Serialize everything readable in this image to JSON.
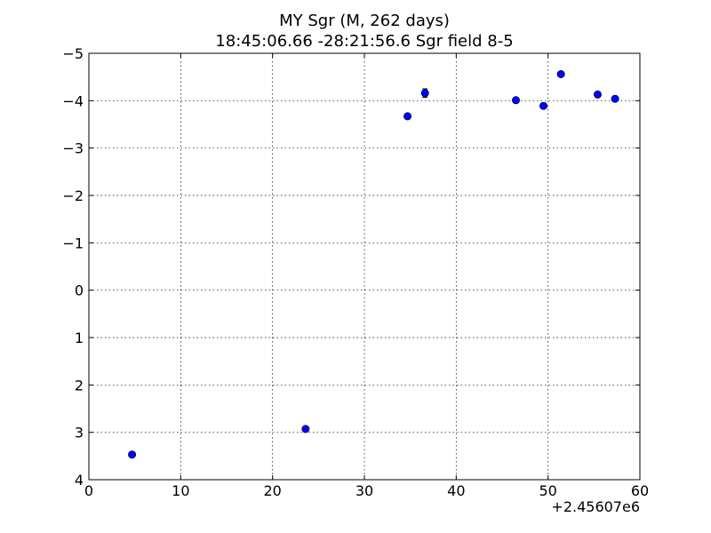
{
  "chart_data": {
    "type": "scatter",
    "title_line1": "MY Sgr  (M, 262 days)",
    "title_line2": "18:45:06.66 -28:21:56.6 Sgr field 8-5",
    "xlabel": "",
    "ylabel": "",
    "x_offset_label": "+2.45607e6",
    "xlim": [
      0,
      60
    ],
    "ylim": [
      4,
      -5
    ],
    "y_inverted": true,
    "grid": true,
    "x_ticks": [
      0,
      10,
      20,
      30,
      40,
      50,
      60
    ],
    "x_tick_labels": [
      "0",
      "10",
      "20",
      "30",
      "40",
      "50",
      "60"
    ],
    "y_ticks": [
      -5,
      -4,
      -3,
      -2,
      -1,
      0,
      1,
      2,
      3,
      4
    ],
    "y_tick_labels": [
      "−5",
      "−4",
      "−3",
      "−2",
      "−1",
      "0",
      "1",
      "2",
      "3",
      "4"
    ],
    "series": [
      {
        "marker_color": "#0000ff",
        "points": [
          {
            "x": 4.7,
            "y": 3.47,
            "err": 0.03
          },
          {
            "x": 23.6,
            "y": 2.93,
            "err": 0.04
          },
          {
            "x": 34.7,
            "y": -3.67,
            "err": 0.03
          },
          {
            "x": 36.6,
            "y": -4.16,
            "err": 0.09
          },
          {
            "x": 46.5,
            "y": -4.01,
            "err": 0.03
          },
          {
            "x": 49.5,
            "y": -3.89,
            "err": 0.03
          },
          {
            "x": 51.4,
            "y": -4.56,
            "err": 0.05
          },
          {
            "x": 55.4,
            "y": -4.13,
            "err": 0.03
          },
          {
            "x": 57.3,
            "y": -4.04,
            "err": 0.03
          }
        ]
      }
    ]
  }
}
